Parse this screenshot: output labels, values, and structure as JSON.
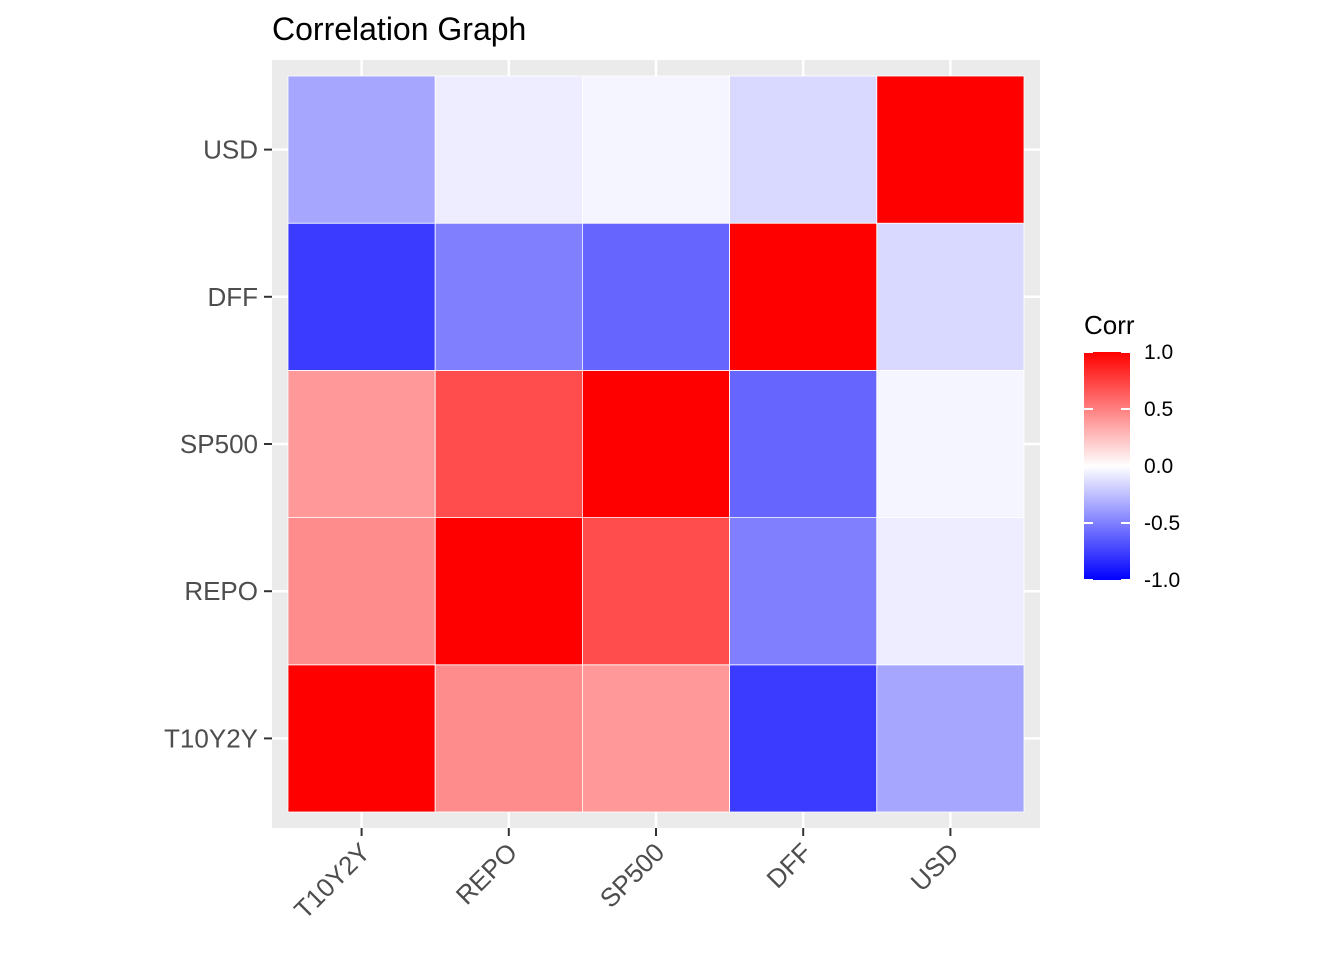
{
  "chart_data": {
    "type": "heatmap",
    "title": "Correlation Graph",
    "xlabel": "",
    "ylabel": "",
    "x_categories": [
      "T10Y2Y",
      "REPO",
      "SP500",
      "DFF",
      "USD"
    ],
    "y_categories": [
      "T10Y2Y",
      "REPO",
      "SP500",
      "DFF",
      "USD"
    ],
    "matrix": [
      [
        1.0,
        0.45,
        0.4,
        -0.77,
        -0.35
      ],
      [
        0.45,
        1.0,
        0.7,
        -0.5,
        -0.07
      ],
      [
        0.4,
        0.7,
        1.0,
        -0.6,
        -0.04
      ],
      [
        -0.77,
        -0.5,
        -0.6,
        1.0,
        -0.15
      ],
      [
        -0.35,
        -0.07,
        -0.04,
        -0.15,
        1.0
      ]
    ],
    "legend": {
      "title": "Corr",
      "position": "right",
      "range": [
        -1.0,
        1.0
      ],
      "ticks": [
        1.0,
        0.5,
        0.0,
        -0.5,
        -1.0
      ],
      "tick_labels": [
        "1.0",
        "0.5",
        "0.0",
        "-0.5",
        "-1.0"
      ]
    },
    "colors": {
      "low": "#0000ff",
      "mid": "#ffffff",
      "high": "#ff0000",
      "panel_background": "#ebebeb",
      "grid": "#ffffff"
    },
    "grid": true
  }
}
